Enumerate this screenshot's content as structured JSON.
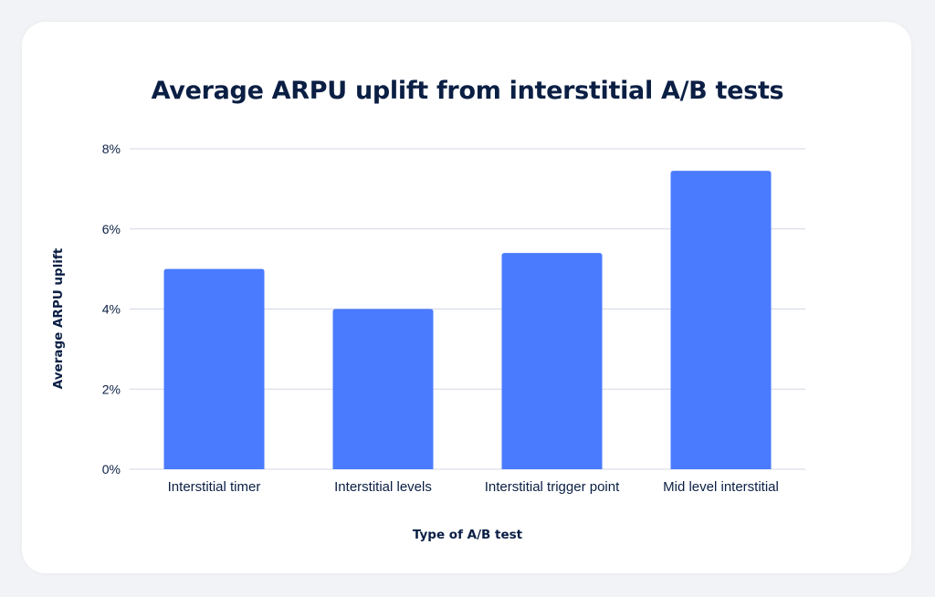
{
  "chart_data": {
    "type": "bar",
    "title": "Average ARPU uplift from interstitial A/B tests",
    "xlabel": "Type of A/B test",
    "ylabel": "Average ARPU uplift",
    "categories": [
      "Interstitial timer",
      "Interstitial levels",
      "Interstitial trigger point",
      "Mid level interstitial"
    ],
    "values": [
      5.0,
      4.0,
      5.4,
      7.45
    ],
    "ylim": [
      0,
      8
    ],
    "yticks": [
      0,
      2,
      4,
      6,
      8
    ],
    "ytick_labels": [
      "0%",
      "2%",
      "4%",
      "6%",
      "8%"
    ],
    "grid": true
  },
  "colors": {
    "bar": "#4a7bff",
    "text": "#0b1f44",
    "grid": "#d3d7e6",
    "card": "#ffffff",
    "background": "#f2f3f6"
  }
}
